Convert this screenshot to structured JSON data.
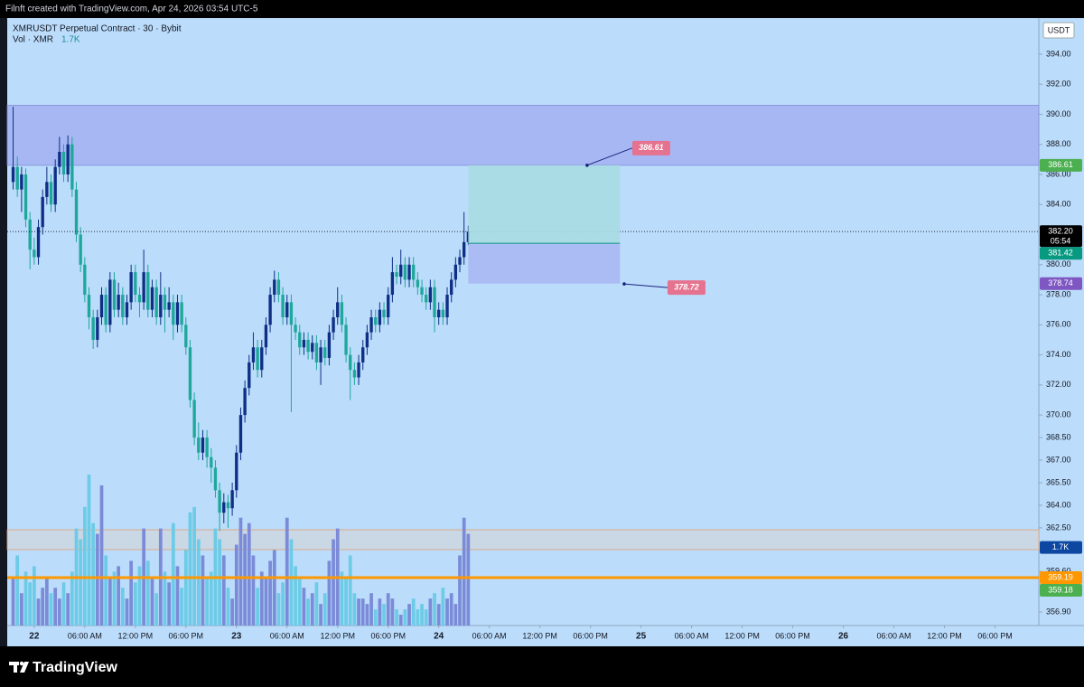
{
  "header": {
    "text": "Filnft created with TradingView.com, Apr 24, 2026 03:54 UTC-5"
  },
  "footer": {
    "brand": "TradingView"
  },
  "chart_data": {
    "type": "candlestick",
    "title": "XMRUSDT Perpetual Contract · 30 · Bybit",
    "volume_title": "Vol · XMR",
    "volume_label": "1.7K",
    "currency": "USDT",
    "x": [
      -2.5,
      -2,
      -1.5,
      -1,
      -0.5,
      0,
      0.5,
      1,
      1.5,
      2,
      2.5,
      3,
      3.5,
      4,
      4.5,
      5,
      5.5,
      6,
      6.5,
      7,
      7.5,
      8,
      8.5,
      9,
      9.5,
      10,
      10.5,
      11,
      11.5,
      12,
      12.5,
      13,
      13.5,
      14,
      14.5,
      15,
      15.5,
      16,
      16.5,
      17,
      17.5,
      18,
      18.5,
      19,
      19.5,
      20,
      20.5,
      21,
      21.5,
      22,
      22.5,
      23,
      23.5,
      24,
      24.5,
      25,
      25.5,
      26,
      26.5,
      27,
      27.5,
      28,
      28.5,
      29,
      29.5,
      30,
      30.5,
      31,
      31.5,
      32,
      32.5,
      33,
      33.5,
      34,
      34.5,
      35,
      35.5,
      36,
      36.5,
      37,
      37.5,
      38,
      38.5,
      39,
      39.5,
      40,
      40.5,
      41,
      41.5,
      42,
      42.5,
      43,
      43.5,
      44,
      44.5,
      45,
      45.5,
      46,
      46.5,
      47,
      47.5,
      48,
      48.5,
      49,
      49.5,
      50,
      50.5,
      51,
      51.5
    ],
    "open": [
      385.5,
      386.5,
      385,
      386,
      383,
      381,
      380.5,
      382.5,
      384.5,
      385.5,
      384,
      386.5,
      387.5,
      386,
      388,
      385,
      382,
      380,
      378,
      376.5,
      375,
      376.5,
      378,
      376,
      379,
      377,
      378,
      376.5,
      377.5,
      379.5,
      378,
      377.5,
      379.5,
      377,
      378.5,
      376.5,
      378,
      377,
      377.5,
      376,
      377.5,
      376,
      374.5,
      371,
      368.5,
      367.5,
      368.5,
      367.2,
      366.5,
      365,
      363.5,
      364.2,
      363.8,
      365,
      367.5,
      370,
      371.8,
      373.5,
      374.5,
      373,
      374.5,
      376,
      378,
      379,
      378,
      376.5,
      377.5,
      376,
      375.5,
      374.5,
      375,
      374.2,
      374.8,
      373.5,
      374.5,
      373.8,
      375.5,
      376.5,
      377.5,
      376,
      374,
      373,
      372.5,
      373.5,
      374.5,
      375.5,
      376.5,
      376,
      377,
      376.5,
      378,
      379.5,
      379.2,
      380,
      379,
      380,
      379,
      378.5,
      378,
      377.5,
      378.5,
      376.5,
      377,
      376.5,
      378,
      379,
      380,
      380.5,
      381.5
    ],
    "high": [
      390.5,
      387.2,
      386.5,
      386.4,
      383.5,
      381.8,
      383,
      385,
      386.5,
      386,
      387,
      388.5,
      388,
      388.6,
      388.5,
      385.5,
      382.5,
      380.5,
      378.5,
      377,
      377,
      378.5,
      378.5,
      379.5,
      379.5,
      378.8,
      378.5,
      378,
      380,
      380,
      378.5,
      381,
      380,
      379,
      379,
      379.5,
      378.5,
      378.5,
      378,
      378,
      378,
      376.5,
      375,
      371.5,
      369.5,
      369,
      369,
      367.8,
      367,
      365.5,
      364.8,
      364.7,
      365.5,
      368,
      370.5,
      372.3,
      374,
      375.5,
      375,
      375,
      376.5,
      378.5,
      379.6,
      379.5,
      378.5,
      378,
      378,
      376.5,
      376,
      375.5,
      375.5,
      375.3,
      375.3,
      375,
      375,
      376,
      377,
      378.5,
      378,
      376.5,
      374.5,
      373.5,
      374,
      375,
      376,
      377,
      377,
      377.5,
      377.5,
      378.5,
      380.5,
      380,
      381,
      380.5,
      380.5,
      380.5,
      379.5,
      379,
      378.5,
      379,
      379,
      377.5,
      377.5,
      378.5,
      379.5,
      380.5,
      381,
      383.5,
      382.6
    ],
    "low": [
      385,
      384.5,
      383.5,
      382.5,
      379.7,
      380,
      380,
      382,
      384,
      383.5,
      383.5,
      386,
      385.5,
      385.5,
      384.5,
      381.5,
      379.5,
      377.5,
      375.7,
      374.4,
      374.5,
      376,
      375.5,
      375.5,
      376.5,
      376.5,
      376,
      376,
      377,
      377.5,
      376.5,
      377,
      376.5,
      376.5,
      376,
      376,
      375.5,
      376.5,
      375,
      375.5,
      375.5,
      374,
      370.5,
      368,
      367,
      367,
      366.5,
      365.5,
      364.5,
      362.3,
      362.8,
      362.5,
      363.3,
      364.5,
      367,
      369.5,
      371.3,
      373,
      372.5,
      372.5,
      374,
      375.5,
      377.5,
      377.5,
      376,
      376,
      370.2,
      375,
      374,
      374,
      373.7,
      373.7,
      373,
      372,
      373.3,
      373.3,
      375,
      376,
      375.5,
      373.5,
      371,
      372,
      372,
      373,
      374,
      375,
      375.5,
      375.5,
      376,
      376,
      377.5,
      378.7,
      378.7,
      378.5,
      378.5,
      378.5,
      378,
      377.5,
      377,
      377,
      375.5,
      376,
      376,
      376,
      377.5,
      378.5,
      379.5,
      380,
      381.3
    ],
    "close": [
      386.5,
      385,
      386,
      383,
      381,
      380.5,
      382.5,
      384.5,
      385.5,
      384,
      386.5,
      387.5,
      386,
      388,
      385,
      382,
      380,
      378,
      376.5,
      375,
      376.5,
      378,
      376,
      379,
      377,
      378,
      376.5,
      377.5,
      379.5,
      378,
      377.5,
      379.5,
      377,
      378.5,
      376.5,
      378,
      377,
      377.5,
      376,
      377.5,
      376,
      374.5,
      371,
      368.5,
      367.5,
      368.5,
      367.2,
      366.5,
      365,
      363.5,
      364.2,
      363.8,
      365,
      367.5,
      370,
      371.8,
      373.5,
      374.5,
      373,
      374.5,
      376,
      378,
      379,
      378,
      376.5,
      377.5,
      376,
      375.5,
      374.5,
      375,
      374.2,
      374.8,
      373.5,
      374.5,
      373.8,
      375.5,
      376.5,
      377.5,
      376,
      374,
      373,
      372.5,
      373.5,
      374.5,
      375.5,
      376.5,
      376,
      377,
      376.5,
      378,
      379.5,
      379.2,
      380,
      379,
      380,
      379,
      378.5,
      378,
      377.5,
      378.5,
      376.5,
      377,
      376.5,
      378,
      379,
      380,
      380.5,
      381.5,
      382.2
    ],
    "volume": [
      0.9,
      1.3,
      0.6,
      1.0,
      0.8,
      1.1,
      0.5,
      0.7,
      0.9,
      0.6,
      0.7,
      0.5,
      0.8,
      0.6,
      1.0,
      1.8,
      1.6,
      2.2,
      2.8,
      1.9,
      1.7,
      2.6,
      1.3,
      0.9,
      1.0,
      1.1,
      0.7,
      0.5,
      1.2,
      0.8,
      1.1,
      1.8,
      1.2,
      0.9,
      0.6,
      1.8,
      1.0,
      0.8,
      1.9,
      1.1,
      0.7,
      1.4,
      2.1,
      2.2,
      1.6,
      1.3,
      0.9,
      1.0,
      1.8,
      1.6,
      1.3,
      0.7,
      0.5,
      1.5,
      2.0,
      1.7,
      1.9,
      1.3,
      0.7,
      1.0,
      0.9,
      1.2,
      1.4,
      0.6,
      0.8,
      2.0,
      1.6,
      1.1,
      0.9,
      0.7,
      0.5,
      0.6,
      0.8,
      0.4,
      0.6,
      1.2,
      1.6,
      1.8,
      1.0,
      0.9,
      1.3,
      0.6,
      0.5,
      0.5,
      0.4,
      0.6,
      0.3,
      0.5,
      0.4,
      0.6,
      0.5,
      0.3,
      0.2,
      0.3,
      0.4,
      0.5,
      0.3,
      0.4,
      0.3,
      0.5,
      0.6,
      0.4,
      0.7,
      0.5,
      0.6,
      0.4,
      1.3,
      2.0,
      1.7
    ],
    "up_color": "#0f2f86",
    "down_color": "#1ea89c",
    "volume_up_color": "#7b8bd8",
    "volume_down_color": "#6ccbe6",
    "xlim": [
      -3.2,
      119.2
    ],
    "xticks": [
      {
        "value": 0,
        "label": "22"
      },
      {
        "value": 6,
        "label": "06:00 AM"
      },
      {
        "value": 12,
        "label": "12:00 PM"
      },
      {
        "value": 18,
        "label": "06:00 PM"
      },
      {
        "value": 24,
        "label": "23"
      },
      {
        "value": 30,
        "label": "06:00 AM"
      },
      {
        "value": 36,
        "label": "12:00 PM"
      },
      {
        "value": 42,
        "label": "06:00 PM"
      },
      {
        "value": 48,
        "label": "24"
      },
      {
        "value": 54,
        "label": "06:00 AM"
      },
      {
        "value": 60,
        "label": "12:00 PM"
      },
      {
        "value": 66,
        "label": "06:00 PM"
      },
      {
        "value": 72,
        "label": "25"
      },
      {
        "value": 78,
        "label": "06:00 AM"
      },
      {
        "value": 84,
        "label": "12:00 PM"
      },
      {
        "value": 90,
        "label": "06:00 PM"
      },
      {
        "value": 96,
        "label": "26"
      },
      {
        "value": 102,
        "label": "06:00 AM"
      },
      {
        "value": 108,
        "label": "12:00 PM"
      },
      {
        "value": 114,
        "label": "06:00 PM"
      }
    ],
    "ylim": [
      356.0,
      396.4
    ],
    "yticks": [
      {
        "value": 394,
        "label": "394.00"
      },
      {
        "value": 392,
        "label": "392.00"
      },
      {
        "value": 390,
        "label": "390.00"
      },
      {
        "value": 388,
        "label": "388.00"
      },
      {
        "value": 386,
        "label": "386.00"
      },
      {
        "value": 384,
        "label": "384.00"
      },
      {
        "value": 380,
        "label": "380.00"
      },
      {
        "value": 378,
        "label": "378.00"
      },
      {
        "value": 376,
        "label": "376.00"
      },
      {
        "value": 374,
        "label": "374.00"
      },
      {
        "value": 372,
        "label": "372.00"
      },
      {
        "value": 370,
        "label": "370.00"
      },
      {
        "value": 368.5,
        "label": "368.50"
      },
      {
        "value": 367,
        "label": "367.00"
      },
      {
        "value": 365.5,
        "label": "365.50"
      },
      {
        "value": 364,
        "label": "364.00"
      },
      {
        "value": 362.5,
        "label": "362.50"
      },
      {
        "value": 359.6,
        "label": "359.60"
      },
      {
        "value": 356.9,
        "label": "356.90"
      }
    ],
    "zones": [
      {
        "from": 386.61,
        "to": 390.6,
        "color": "#a3b0f2"
      },
      {
        "from": 361.05,
        "to": 362.37,
        "color": "#cdd6e0"
      }
    ],
    "last_price": {
      "value": 382.2,
      "label": "382.20",
      "countdown": "05:54"
    },
    "position": {
      "x": [
        51.5,
        69.5
      ],
      "entry": 381.42,
      "target": 386.61,
      "stop": 378.74,
      "target_color": "#a9dbe3",
      "stop_color": "#aab8f3",
      "entry_color": "#089981",
      "target_badge_color": "#4caf50",
      "stop_badge_color": "#7e57c2"
    },
    "levels": [
      {
        "value": 359.19,
        "color": "#ff9800",
        "line": true
      },
      {
        "value": 359.18,
        "color": "#4caf50",
        "line": false
      }
    ],
    "callouts": [
      {
        "value": 386.61,
        "x": 65.6
      },
      {
        "value": 378.72,
        "x": 70
      }
    ],
    "volume_badge_color": "#0d47a1"
  }
}
